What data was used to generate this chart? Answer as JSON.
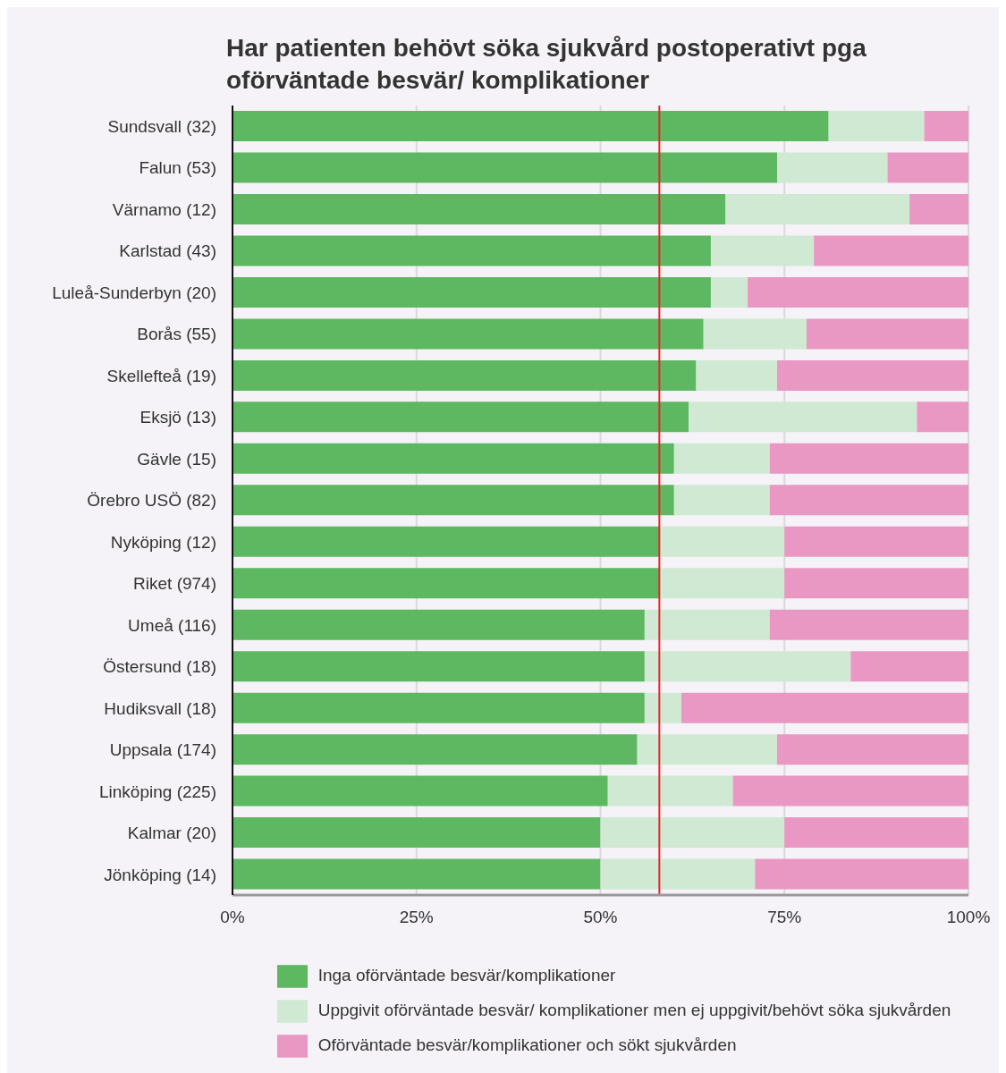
{
  "chart_data": {
    "type": "bar",
    "orientation": "horizontal",
    "stacked": true,
    "title": "Har patienten behövt söka sjukvård postoperativt pga oförväntade besvär/ komplikationer",
    "categories": [
      "Sundsvall (32)",
      "Falun (53)",
      "Värnamo (12)",
      "Karlstad (43)",
      "Luleå-Sunderbyn (20)",
      "Borås (55)",
      "Skellefteå (19)",
      "Eksjö (13)",
      "Gävle (15)",
      "Örebro USÖ (82)",
      "Nyköping (12)",
      "Riket (974)",
      "Umeå (116)",
      "Östersund (18)",
      "Hudiksvall (18)",
      "Uppsala (174)",
      "Linköping (225)",
      "Kalmar (20)",
      "Jönköping (14)"
    ],
    "series": [
      {
        "name": "Inga oförväntade besvär/komplikationer",
        "color": "#5eb761",
        "values": [
          81,
          74,
          67,
          65,
          65,
          64,
          63,
          62,
          60,
          60,
          58,
          58,
          56,
          56,
          56,
          55,
          51,
          50,
          50
        ]
      },
      {
        "name": "Uppgivit oförväntade besvär/ komplikationer men ej uppgivit/behövt söka sjukvården",
        "color": "#d0e9d3",
        "values": [
          13,
          15,
          25,
          14,
          5,
          14,
          11,
          31,
          13,
          13,
          17,
          17,
          17,
          28,
          5,
          19,
          17,
          25,
          21
        ]
      },
      {
        "name": "Oförväntade besvär/komplikationer och sökt sjukvården",
        "color": "#e997c3",
        "values": [
          6,
          11,
          8,
          21,
          30,
          22,
          26,
          7,
          27,
          27,
          25,
          25,
          27,
          16,
          39,
          26,
          32,
          25,
          29
        ]
      }
    ],
    "xlim": [
      0,
      100
    ],
    "xticks": [
      {
        "value": 0,
        "label": "0%"
      },
      {
        "value": 25,
        "label": "25%"
      },
      {
        "value": 50,
        "label": "50%"
      },
      {
        "value": 75,
        "label": "75%"
      },
      {
        "value": 100,
        "label": "100%"
      }
    ],
    "ref_lines": [
      {
        "axis": "x",
        "value": 58,
        "color": "#e8252a"
      }
    ],
    "grid": "x",
    "legend": "bottom"
  }
}
